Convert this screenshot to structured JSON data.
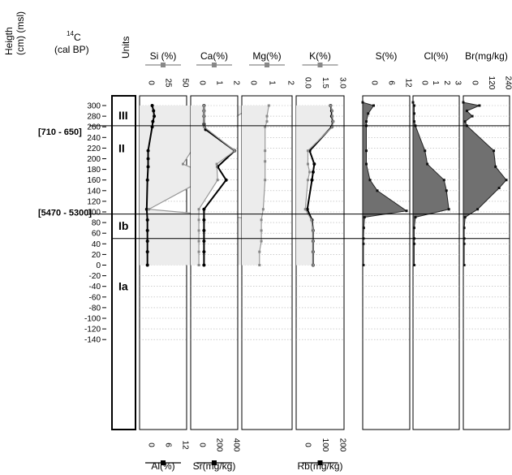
{
  "header": {
    "height_label_line1": "Heigth",
    "height_label_line2": "(cm) (msl)",
    "c14_sup": "14",
    "c14_main": "C",
    "c14_sub": "(cal BP)",
    "units_label": "Units"
  },
  "units": [
    "III",
    "II",
    "Ib",
    "Ia"
  ],
  "dates": [
    "[710 - 650]",
    "[5470 - 5300]"
  ],
  "y_axis": {
    "ticks": [
      300,
      280,
      260,
      240,
      220,
      200,
      180,
      160,
      140,
      120,
      100,
      80,
      60,
      40,
      20,
      0,
      -20,
      -40,
      -60,
      -80,
      -100,
      -120,
      -140
    ],
    "range": [
      -158,
      310
    ]
  },
  "boundaries": [
    262,
    96,
    50
  ],
  "chart_data": [
    {
      "type": "line",
      "top_label": "Si (%)",
      "bottom_label": "Al(%)",
      "top_ticks": [
        "0",
        "25",
        "50"
      ],
      "bottom_ticks": [
        "0",
        "6",
        "12"
      ],
      "top_range": [
        0,
        50
      ],
      "bottom_range": [
        0,
        12
      ],
      "fill": "light",
      "series": [
        {
          "name": "Si",
          "style": "bold",
          "y": [
            300,
            290,
            280,
            270,
            260,
            215,
            200,
            185,
            160,
            105,
            85,
            65,
            45,
            25,
            0
          ],
          "x": [
            9,
            11,
            12,
            10,
            9,
            3,
            3,
            3,
            2,
            1,
            2,
            2,
            2,
            2,
            2
          ]
        },
        {
          "name": "Al",
          "style": "thin",
          "y": [
            300,
            290,
            280,
            270,
            260,
            215,
            190,
            170,
            160,
            105,
            85,
            65,
            45,
            25,
            0
          ],
          "x": [
            37,
            35,
            32,
            30,
            30,
            16,
            13,
            22,
            20,
            1,
            42,
            45,
            45,
            45,
            45
          ]
        }
      ]
    },
    {
      "type": "line",
      "top_label": "Ca(%)",
      "bottom_label": "Sr(mg/kg)",
      "top_ticks": [
        "0",
        "1",
        "2"
      ],
      "bottom_ticks": [
        "0",
        "200",
        "400"
      ],
      "top_range": [
        0,
        2
      ],
      "bottom_range": [
        0,
        400
      ],
      "fill": "light",
      "series": [
        {
          "name": "Ca",
          "style": "bold",
          "y": [
            300,
            290,
            280,
            265,
            255,
            215,
            185,
            160,
            105,
            85,
            65,
            45,
            25,
            0
          ],
          "x": [
            0.4,
            0.4,
            0.4,
            0.4,
            0.5,
            2.2,
            1.2,
            1.7,
            0.4,
            0.4,
            0.4,
            0.4,
            0.4,
            0.4
          ]
        },
        {
          "name": "Sr",
          "style": "thin",
          "y": [
            300,
            290,
            280,
            270,
            260,
            215,
            190,
            160,
            105,
            85,
            65,
            45,
            25,
            0
          ],
          "x": [
            80,
            80,
            80,
            80,
            80,
            440,
            230,
            240,
            20,
            20,
            20,
            20,
            20,
            20
          ]
        }
      ]
    },
    {
      "type": "line",
      "top_label": "Mg(%)",
      "bottom_label": "",
      "top_ticks": [
        "0",
        "1",
        "2"
      ],
      "bottom_ticks": [],
      "top_range": [
        0,
        2
      ],
      "bottom_range": [],
      "fill": "light",
      "series": [
        {
          "name": "Mg",
          "style": "thin",
          "y": [
            300,
            280,
            270,
            260,
            215,
            195,
            160,
            105,
            85,
            65,
            45,
            25,
            0
          ],
          "x": [
            1.1,
            1.0,
            1.0,
            0.9,
            0.9,
            0.9,
            0.9,
            0.8,
            0.7,
            0.7,
            0.7,
            0.6,
            0.6
          ]
        }
      ]
    },
    {
      "type": "line",
      "top_label": "K(%)",
      "bottom_label": "Rb(mg/kg)",
      "top_ticks": [
        "0.0",
        "1.5",
        "3.0"
      ],
      "bottom_ticks": [
        "0",
        "100",
        "200"
      ],
      "top_range": [
        0,
        3
      ],
      "bottom_range": [
        0,
        200
      ],
      "fill": "light",
      "series": [
        {
          "name": "K",
          "style": "bold",
          "y": [
            300,
            290,
            280,
            270,
            260,
            215,
            190,
            175,
            160,
            105,
            85,
            65,
            45,
            25,
            0
          ],
          "x": [
            2.4,
            2.5,
            2.5,
            2.6,
            2.5,
            0.6,
            1.0,
            0.9,
            0.8,
            0.4,
            0.8,
            0.9,
            0.9,
            0.9,
            0.9
          ]
        },
        {
          "name": "Rb",
          "style": "thin",
          "y": [
            300,
            290,
            280,
            270,
            260,
            215,
            190,
            175,
            160,
            105,
            85,
            65,
            45,
            25,
            0
          ],
          "x": [
            160,
            170,
            170,
            175,
            170,
            30,
            30,
            40,
            30,
            15,
            50,
            60,
            60,
            60,
            60
          ]
        }
      ]
    },
    {
      "type": "area",
      "top_label": "S(%)",
      "bottom_label": "",
      "top_ticks": [
        "0",
        "6",
        "12"
      ],
      "bottom_ticks": [],
      "top_range": [
        0,
        12
      ],
      "bottom_range": [],
      "fill": "dark",
      "series": [
        {
          "name": "S",
          "style": "area",
          "y": [
            306,
            300,
            285,
            270,
            262,
            215,
            190,
            160,
            140,
            102,
            90,
            70,
            50,
            40,
            0
          ],
          "x": [
            0,
            3,
            1.5,
            1,
            1,
            1,
            1,
            2,
            4,
            12,
            0.5,
            0.3,
            0.2,
            0.2,
            0.2
          ]
        }
      ]
    },
    {
      "type": "area",
      "top_label": "Cl(%)",
      "bottom_label": "",
      "top_ticks": [
        "0",
        "1",
        "2",
        "3"
      ],
      "bottom_ticks": [],
      "top_range": [
        0,
        3.6
      ],
      "bottom_range": [],
      "fill": "dark",
      "series": [
        {
          "name": "Cl",
          "style": "area",
          "y": [
            306,
            300,
            285,
            270,
            262,
            215,
            190,
            160,
            140,
            105,
            90,
            70,
            50,
            40,
            0
          ],
          "x": [
            0,
            0.1,
            0.1,
            0.1,
            0.2,
            1.0,
            1.2,
            2.6,
            2.8,
            3.0,
            0.2,
            0.1,
            0.1,
            0.1,
            0.1
          ]
        }
      ]
    },
    {
      "type": "area",
      "top_label": "Br(mg/kg)",
      "bottom_label": "",
      "top_ticks": [
        "0",
        "120",
        "240"
      ],
      "bottom_ticks": [],
      "top_range": [
        0,
        240
      ],
      "bottom_range": [],
      "fill": "dark",
      "series": [
        {
          "name": "Br",
          "style": "area",
          "y": [
            306,
            300,
            290,
            280,
            270,
            262,
            215,
            185,
            160,
            145,
            105,
            90,
            70,
            50,
            40,
            0
          ],
          "x": [
            0,
            90,
            20,
            50,
            10,
            20,
            170,
            180,
            240,
            200,
            80,
            10,
            5,
            5,
            5,
            5
          ]
        }
      ]
    }
  ]
}
